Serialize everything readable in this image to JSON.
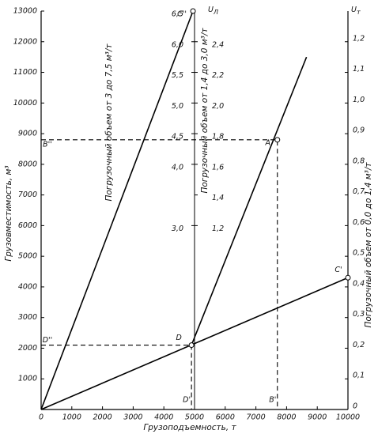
{
  "chart_data": {
    "type": "line",
    "x_label": "Грузоподъемность, т",
    "y_label": "Грузовместимость, м³",
    "xlim": [
      0,
      10000
    ],
    "xticks": [
      0,
      1000,
      2000,
      3000,
      4000,
      5000,
      6000,
      7000,
      8000,
      9000,
      10000
    ],
    "ylim": [
      0,
      13000
    ],
    "yticks": [
      1000,
      2000,
      3000,
      4000,
      5000,
      6000,
      7000,
      8000,
      9000,
      10000,
      11000,
      12000,
      13000
    ],
    "y2_label": "Погрузочный объем от 0,0 до 1,4 м³/т",
    "y2_symbol": {
      "main": "U",
      "sub": "т"
    },
    "y2lim": [
      0,
      1.3
    ],
    "y2ticks": [
      0,
      {
        "value": 0.1,
        "label": "0,1"
      },
      {
        "value": 0.2,
        "label": "0,2"
      },
      {
        "value": 0.3,
        "label": "0,3"
      },
      {
        "value": 0.4,
        "label": "0,4"
      },
      {
        "value": 0.5,
        "label": "0,5"
      },
      {
        "value": 0.6,
        "label": "0,6"
      },
      {
        "value": 0.7,
        "label": "0,7"
      },
      {
        "value": 0.8,
        "label": "0,8"
      },
      {
        "value": 0.9,
        "label": "0,9"
      },
      {
        "value": 1.0,
        "label": "1,0"
      },
      {
        "value": 1.1,
        "label": "1,1"
      },
      {
        "value": 1.2,
        "label": "1,2"
      }
    ],
    "inner_axes": [
      {
        "label": "Погрузочный объем от 3 до 7,5 м³/т",
        "x": 5000,
        "lim": [
          0,
          6.5
        ],
        "side": "left",
        "ticks": [
          {
            "value": 3.0,
            "label": "3,0"
          },
          {
            "value": 4.0,
            "label": "4,0"
          },
          {
            "value": 4.5,
            "label": "4,5"
          },
          {
            "value": 5.0,
            "label": "5,0"
          },
          {
            "value": 5.5,
            "label": "5,5"
          },
          {
            "value": 6.0,
            "label": "6,0"
          },
          {
            "value": 6.5,
            "label": "6,5"
          }
        ]
      },
      {
        "label": "Погрузочный объем от 1,4 до 3,0 м³/т",
        "symbol": {
          "main": "U",
          "sub": "Л"
        },
        "x": 5000,
        "lim": [
          0,
          2.6
        ],
        "side": "right",
        "ticks": [
          {
            "value": 1.2,
            "label": "1,2"
          },
          {
            "value": 1.4,
            "label": "1,4"
          },
          {
            "value": 1.6,
            "label": "1,6"
          },
          {
            "value": 1.8,
            "label": "1,8"
          },
          {
            "value": 2.0,
            "label": "2,0"
          },
          {
            "value": 2.2,
            "label": "2,2"
          },
          {
            "value": 2.4,
            "label": "2,4"
          }
        ]
      }
    ],
    "color": "#000000",
    "series": [
      {
        "x": [
          0,
          4950
        ],
        "values": [
          0,
          13000
        ]
      },
      {
        "x": [
          4900,
          8650
        ],
        "values": [
          2100,
          11500
        ]
      },
      {
        "x": [
          0,
          10000
        ],
        "values": [
          0,
          4300
        ]
      }
    ],
    "guide_style": "dashed",
    "guides": [
      {
        "x": [
          0,
          7700,
          7700
        ],
        "values": [
          8800,
          8800,
          0
        ]
      },
      {
        "x": [
          0,
          4900,
          4900
        ],
        "values": [
          2100,
          2100,
          0
        ]
      }
    ],
    "points": [
      {
        "label": "C''",
        "x": 4950,
        "y": 13000,
        "marker": true
      },
      {
        "label": "A",
        "x": 7700,
        "y": 8800,
        "marker": true
      },
      {
        "label": "D",
        "x": 4900,
        "y": 2100,
        "marker": true
      },
      {
        "label": "C'",
        "x": 10000,
        "y": 4300,
        "marker": true
      },
      {
        "label": "B''",
        "x": 0,
        "y": 8800,
        "marker": false
      },
      {
        "label": "D''",
        "x": 0,
        "y": 2100,
        "marker": false
      },
      {
        "label": "B'",
        "x": 7700,
        "y": 0,
        "marker": false
      },
      {
        "label": "D'",
        "x": 4900,
        "y": 0,
        "marker": false
      }
    ]
  }
}
